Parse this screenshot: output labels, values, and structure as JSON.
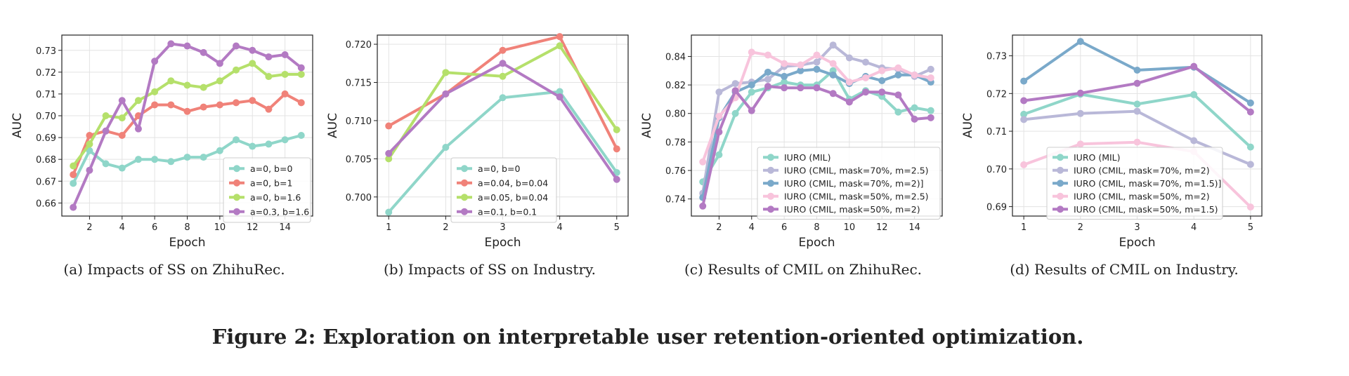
{
  "figure_caption": "Figure 2: Exploration on interpretable user retention-oriented optimization.",
  "colors": {
    "teal": "#8fd6c9",
    "salmon": "#f08279",
    "lime": "#b5e06b",
    "purple": "#b37ac3",
    "lavender": "#b9b8d8",
    "steel": "#7aa9ca",
    "pink": "#f8c4dc",
    "grid": "#e3e3e3",
    "axis": "#222222"
  },
  "chart_data": [
    {
      "type": "line",
      "title": "",
      "caption": "(a) Impacts of SS on ZhihuRec.",
      "xlabel": "Epoch",
      "ylabel": "AUC",
      "xlim": [
        0.3,
        15.7
      ],
      "ylim": [
        0.654,
        0.737
      ],
      "xticks": [
        "2",
        "4",
        "6",
        "8",
        "10",
        "12",
        "14"
      ],
      "xtick_values": [
        2,
        4,
        6,
        8,
        10,
        12,
        14
      ],
      "yticks": [
        "0.66",
        "0.67",
        "0.68",
        "0.69",
        "0.70",
        "0.71",
        "0.72",
        "0.73"
      ],
      "ytick_values": [
        0.66,
        0.67,
        0.68,
        0.69,
        0.7,
        0.71,
        0.72,
        0.73
      ],
      "grid": true,
      "legend": "lower-right",
      "x": [
        1,
        2,
        3,
        4,
        5,
        6,
        7,
        8,
        9,
        10,
        11,
        12,
        13,
        14,
        15
      ],
      "series": [
        {
          "name": "a=0, b=0",
          "color": "teal",
          "values": [
            0.669,
            0.684,
            0.678,
            0.676,
            0.68,
            0.68,
            0.679,
            0.681,
            0.681,
            0.684,
            0.689,
            0.686,
            0.687,
            0.689,
            0.691
          ]
        },
        {
          "name": "a=0, b=1",
          "color": "salmon",
          "values": [
            0.673,
            0.691,
            0.693,
            0.691,
            0.7,
            0.705,
            0.705,
            0.702,
            0.704,
            0.705,
            0.706,
            0.707,
            0.703,
            0.71,
            0.706
          ]
        },
        {
          "name": "a=0, b=1.6",
          "color": "lime",
          "values": [
            0.677,
            0.687,
            0.7,
            0.699,
            0.707,
            0.711,
            0.716,
            0.714,
            0.713,
            0.716,
            0.721,
            0.724,
            0.718,
            0.719,
            0.719
          ]
        },
        {
          "name": "a=0.3, b=1.6",
          "color": "purple",
          "values": [
            0.658,
            0.675,
            0.693,
            0.707,
            0.694,
            0.725,
            0.733,
            0.732,
            0.729,
            0.724,
            0.732,
            0.73,
            0.727,
            0.728,
            0.722
          ]
        }
      ]
    },
    {
      "type": "line",
      "title": "",
      "caption": "(b) Impacts of SS on Industry.",
      "xlabel": "Epoch",
      "ylabel": "AUC",
      "xlim": [
        0.8,
        5.2
      ],
      "ylim": [
        0.6975,
        0.7212
      ],
      "xticks": [
        "1",
        "2",
        "3",
        "4",
        "5"
      ],
      "xtick_values": [
        1,
        2,
        3,
        4,
        5
      ],
      "yticks": [
        "0.700",
        "0.705",
        "0.710",
        "0.715",
        "0.720"
      ],
      "ytick_values": [
        0.7,
        0.705,
        0.71,
        0.715,
        0.72
      ],
      "grid": true,
      "legend": "lower-center",
      "x": [
        1,
        2,
        3,
        4,
        5
      ],
      "series": [
        {
          "name": "a=0, b=0",
          "color": "teal",
          "values": [
            0.698,
            0.7065,
            0.713,
            0.7138,
            0.7032
          ]
        },
        {
          "name": "a=0.04, b=0.04",
          "color": "salmon",
          "values": [
            0.7093,
            0.7135,
            0.7192,
            0.721,
            0.7063
          ]
        },
        {
          "name": "a=0.05, b=0.04",
          "color": "lime",
          "values": [
            0.705,
            0.7163,
            0.7158,
            0.7198,
            0.7088
          ]
        },
        {
          "name": "a=0.1, b=0.1",
          "color": "purple",
          "values": [
            0.7057,
            0.7135,
            0.7175,
            0.7131,
            0.7023
          ]
        }
      ]
    },
    {
      "type": "line",
      "title": "",
      "caption": "(c) Results of CMIL on ZhihuRec.",
      "xlabel": "Epoch",
      "ylabel": "AUC",
      "xlim": [
        0.3,
        15.7
      ],
      "ylim": [
        0.728,
        0.855
      ],
      "xticks": [
        "2",
        "4",
        "6",
        "8",
        "10",
        "12",
        "14"
      ],
      "xtick_values": [
        2,
        4,
        6,
        8,
        10,
        12,
        14
      ],
      "yticks": [
        "0.74",
        "0.76",
        "0.78",
        "0.80",
        "0.82",
        "0.84"
      ],
      "ytick_values": [
        0.74,
        0.76,
        0.78,
        0.8,
        0.82,
        0.84
      ],
      "grid": true,
      "legend": "lower-right",
      "x": [
        1,
        2,
        3,
        4,
        5,
        6,
        7,
        8,
        9,
        10,
        11,
        12,
        13,
        14,
        15
      ],
      "series": [
        {
          "name": "IURO (MIL)",
          "color": "teal",
          "values": [
            0.752,
            0.771,
            0.8,
            0.815,
            0.818,
            0.822,
            0.82,
            0.82,
            0.83,
            0.81,
            0.816,
            0.812,
            0.801,
            0.804,
            0.802
          ]
        },
        {
          "name": "IURO (CMIL, mask=70%, m=2.5)",
          "color": "lavender",
          "values": [
            0.744,
            0.815,
            0.821,
            0.822,
            0.824,
            0.833,
            0.834,
            0.836,
            0.848,
            0.839,
            0.836,
            0.832,
            0.831,
            0.826,
            0.831
          ]
        },
        {
          "name": "IURO (CMIL, mask=70%, m=2)]",
          "color": "steel",
          "values": [
            0.741,
            0.797,
            0.815,
            0.82,
            0.829,
            0.826,
            0.83,
            0.831,
            0.827,
            0.821,
            0.826,
            0.823,
            0.827,
            0.827,
            0.822
          ]
        },
        {
          "name": "IURO (CMIL, mask=50%, m=2.5)",
          "color": "pink",
          "values": [
            0.766,
            0.798,
            0.811,
            0.843,
            0.841,
            0.835,
            0.834,
            0.841,
            0.835,
            0.822,
            0.825,
            0.83,
            0.832,
            0.827,
            0.825
          ]
        },
        {
          "name": "IURO (CMIL, mask=50%, m=2)",
          "color": "purple",
          "values": [
            0.735,
            0.787,
            0.816,
            0.802,
            0.819,
            0.818,
            0.818,
            0.818,
            0.814,
            0.808,
            0.815,
            0.815,
            0.813,
            0.796,
            0.797
          ]
        }
      ]
    },
    {
      "type": "line",
      "title": "",
      "caption": "(d) Results of CMIL on Industry.",
      "xlabel": "Epoch",
      "ylabel": "AUC",
      "xlim": [
        0.8,
        5.2
      ],
      "ylim": [
        0.6875,
        0.7355
      ],
      "xticks": [
        "1",
        "2",
        "3",
        "4",
        "5"
      ],
      "xtick_values": [
        1,
        2,
        3,
        4,
        5
      ],
      "yticks": [
        "0.69",
        "0.70",
        "0.71",
        "0.72",
        "0.73"
      ],
      "ytick_values": [
        0.69,
        0.7,
        0.71,
        0.72,
        0.73
      ],
      "grid": true,
      "legend": "lower-left",
      "x": [
        1,
        2,
        3,
        4,
        5
      ],
      "series": [
        {
          "name": "IURO (MIL)",
          "color": "teal",
          "values": [
            0.7145,
            0.7198,
            0.7172,
            0.7197,
            0.7058
          ]
        },
        {
          "name": "IURO (CMIL, mask=70%, m=2)",
          "color": "lavender",
          "values": [
            0.7131,
            0.7147,
            0.7153,
            0.7075,
            0.7012
          ]
        },
        {
          "name": "IURO (CMIL, mask=70%, m=1.5)]",
          "color": "steel",
          "values": [
            0.7233,
            0.7338,
            0.7262,
            0.727,
            0.7175
          ]
        },
        {
          "name": "IURO (CMIL, mask=50%, m=2)",
          "color": "pink",
          "values": [
            0.7011,
            0.7066,
            0.7071,
            0.7046,
            0.6899
          ]
        },
        {
          "name": "IURO (CMIL, mask=50%, m=1.5)",
          "color": "purple",
          "values": [
            0.7181,
            0.7201,
            0.7227,
            0.7272,
            0.7151
          ]
        }
      ]
    }
  ]
}
